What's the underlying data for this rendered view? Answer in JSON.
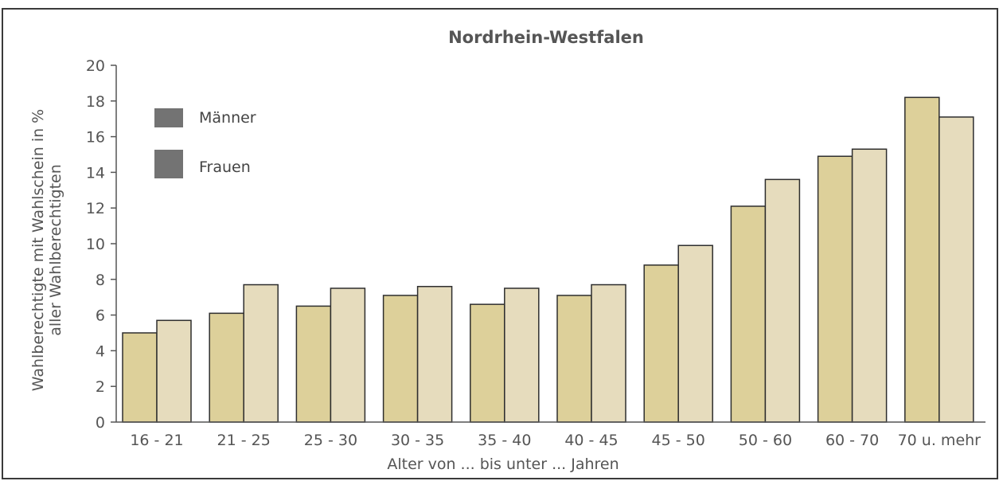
{
  "chart_data": {
    "type": "bar",
    "title": "Nordrhein-Westfalen",
    "xlabel": "Alter von ... bis unter ... Jahren",
    "ylabel": [
      "Wahlberechtigte mit Wahlschein in %",
      "aller Wahlberechtigten"
    ],
    "categories": [
      "16 - 21",
      "21 - 25",
      "25 - 30",
      "30 - 35",
      "35 - 40",
      "40 - 45",
      "45 - 50",
      "50 - 60",
      "60 - 70",
      "70 u. mehr"
    ],
    "series": [
      {
        "name": "Männer",
        "color": "#ddd09a",
        "values": [
          5.0,
          6.1,
          6.5,
          7.1,
          6.6,
          7.1,
          8.8,
          12.1,
          14.9,
          18.2
        ]
      },
      {
        "name": "Frauen",
        "color": "#e6dcbd",
        "values": [
          5.7,
          7.7,
          7.5,
          7.6,
          7.5,
          7.7,
          9.9,
          13.6,
          15.3,
          17.1
        ]
      }
    ],
    "ylim": [
      0,
      20
    ],
    "yticks": [
      "0",
      "2",
      "4",
      "6",
      "8",
      "10",
      "12",
      "14",
      "16",
      "18",
      "20"
    ],
    "grid": false,
    "legend_position": "top-left"
  }
}
